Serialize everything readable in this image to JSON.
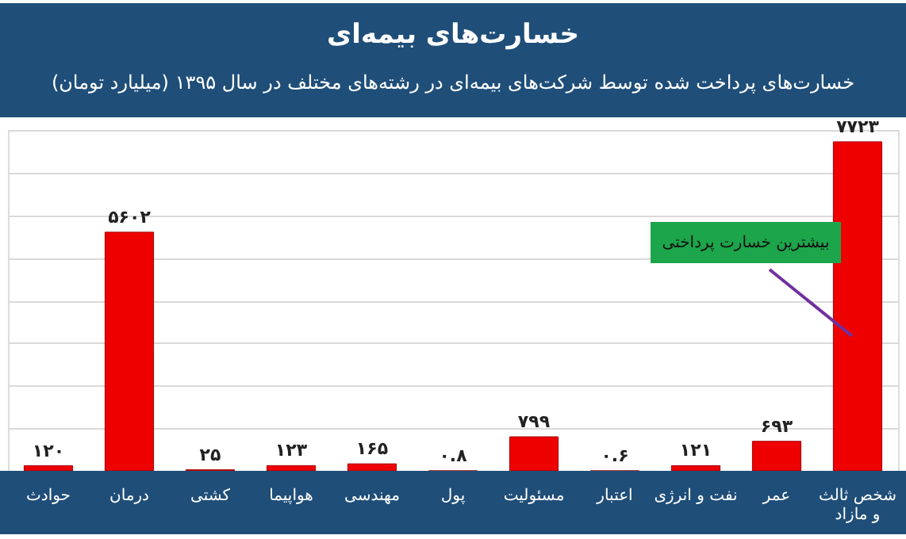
{
  "chart_data": {
    "type": "bar",
    "title": "خسارت‌های بیمه‌ای",
    "subtitle": "خسارت‌های پرداخت شده توسط شرکت‌های بیمه‌ای در رشته‌های مختلف در سال ۱۳۹۵ (میلیارد تومان)",
    "categories": [
      "حوادث",
      "درمان",
      "کشتی",
      "هواپیما",
      "مهندسی",
      "پول",
      "مسئولیت",
      "اعتبار",
      "نفت و انرژی",
      "عمر",
      "شخص ثالث و مازاد"
    ],
    "values": [
      120,
      5602,
      25,
      123,
      165,
      0.8,
      799,
      0.6,
      121,
      693,
      7723
    ],
    "value_labels": [
      "۱۲۰",
      "۵۶۰۲",
      "۲۵",
      "۱۲۳",
      "۱۶۵",
      "۰.۸",
      "۷۹۹",
      "۰.۶",
      "۱۲۱",
      "۶۹۳",
      "۷۷۲۳"
    ],
    "color": "#ee0000",
    "tick_labels": "x",
    "grid": "y",
    "annotations": [
      "بیشترین خسارت پرداختی"
    ]
  }
}
